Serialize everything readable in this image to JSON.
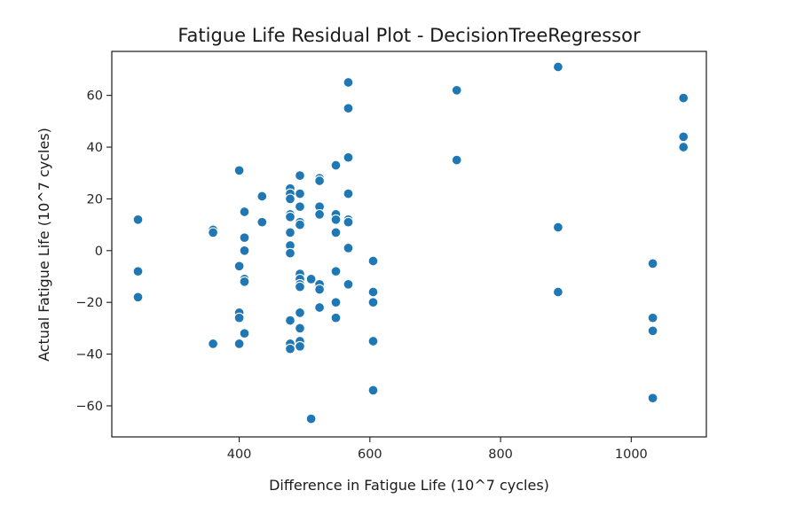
{
  "chart_data": {
    "type": "scatter",
    "title": "Fatigue Life Residual Plot - DecisionTreeRegressor",
    "xlabel": "Difference in Fatigue Life (10^7 cycles)",
    "ylabel": "Actual Fatigue Life (10^7 cycles)",
    "xlim": [
      205,
      1115
    ],
    "ylim": [
      -72,
      77
    ],
    "xticks": [
      400,
      600,
      800,
      1000
    ],
    "yticks": [
      -60,
      -40,
      -20,
      0,
      20,
      40,
      60
    ],
    "grid": false,
    "marker_color": "#1f77b4",
    "points": [
      {
        "x": 245,
        "y": 12
      },
      {
        "x": 245,
        "y": -8
      },
      {
        "x": 245,
        "y": -18
      },
      {
        "x": 360,
        "y": 8
      },
      {
        "x": 360,
        "y": 7
      },
      {
        "x": 360,
        "y": -36
      },
      {
        "x": 400,
        "y": 31
      },
      {
        "x": 400,
        "y": -6
      },
      {
        "x": 400,
        "y": -24
      },
      {
        "x": 400,
        "y": -26
      },
      {
        "x": 400,
        "y": -36
      },
      {
        "x": 408,
        "y": 15
      },
      {
        "x": 408,
        "y": 5
      },
      {
        "x": 408,
        "y": 0
      },
      {
        "x": 408,
        "y": -11
      },
      {
        "x": 408,
        "y": -12
      },
      {
        "x": 408,
        "y": -32
      },
      {
        "x": 435,
        "y": 21
      },
      {
        "x": 435,
        "y": 11
      },
      {
        "x": 478,
        "y": 24
      },
      {
        "x": 478,
        "y": 22
      },
      {
        "x": 478,
        "y": 20
      },
      {
        "x": 478,
        "y": 14
      },
      {
        "x": 478,
        "y": 13
      },
      {
        "x": 478,
        "y": 7
      },
      {
        "x": 478,
        "y": 2
      },
      {
        "x": 478,
        "y": -1
      },
      {
        "x": 478,
        "y": -27
      },
      {
        "x": 478,
        "y": -36
      },
      {
        "x": 478,
        "y": -38
      },
      {
        "x": 493,
        "y": 29
      },
      {
        "x": 493,
        "y": 22
      },
      {
        "x": 493,
        "y": 17
      },
      {
        "x": 493,
        "y": 11
      },
      {
        "x": 493,
        "y": 10
      },
      {
        "x": 493,
        "y": -9
      },
      {
        "x": 493,
        "y": -11
      },
      {
        "x": 493,
        "y": -13
      },
      {
        "x": 493,
        "y": -14
      },
      {
        "x": 493,
        "y": -24
      },
      {
        "x": 493,
        "y": -30
      },
      {
        "x": 493,
        "y": -35
      },
      {
        "x": 493,
        "y": -37
      },
      {
        "x": 510,
        "y": -11
      },
      {
        "x": 510,
        "y": -65
      },
      {
        "x": 523,
        "y": 28
      },
      {
        "x": 523,
        "y": 27
      },
      {
        "x": 523,
        "y": 17
      },
      {
        "x": 523,
        "y": 14
      },
      {
        "x": 523,
        "y": -13
      },
      {
        "x": 523,
        "y": -15
      },
      {
        "x": 523,
        "y": -22
      },
      {
        "x": 548,
        "y": 33
      },
      {
        "x": 548,
        "y": 14
      },
      {
        "x": 548,
        "y": 12
      },
      {
        "x": 548,
        "y": 7
      },
      {
        "x": 548,
        "y": -8
      },
      {
        "x": 548,
        "y": -20
      },
      {
        "x": 548,
        "y": -26
      },
      {
        "x": 567,
        "y": 65
      },
      {
        "x": 567,
        "y": 55
      },
      {
        "x": 567,
        "y": 36
      },
      {
        "x": 567,
        "y": 22
      },
      {
        "x": 567,
        "y": 12
      },
      {
        "x": 567,
        "y": 11
      },
      {
        "x": 567,
        "y": 1
      },
      {
        "x": 567,
        "y": -13
      },
      {
        "x": 605,
        "y": -4
      },
      {
        "x": 605,
        "y": -16
      },
      {
        "x": 605,
        "y": -20
      },
      {
        "x": 605,
        "y": -35
      },
      {
        "x": 605,
        "y": -54
      },
      {
        "x": 733,
        "y": 62
      },
      {
        "x": 733,
        "y": 35
      },
      {
        "x": 888,
        "y": 71
      },
      {
        "x": 888,
        "y": 9
      },
      {
        "x": 888,
        "y": -16
      },
      {
        "x": 1033,
        "y": -5
      },
      {
        "x": 1033,
        "y": -26
      },
      {
        "x": 1033,
        "y": -31
      },
      {
        "x": 1033,
        "y": -57
      },
      {
        "x": 1080,
        "y": 59
      },
      {
        "x": 1080,
        "y": 44
      },
      {
        "x": 1080,
        "y": 40
      }
    ]
  }
}
